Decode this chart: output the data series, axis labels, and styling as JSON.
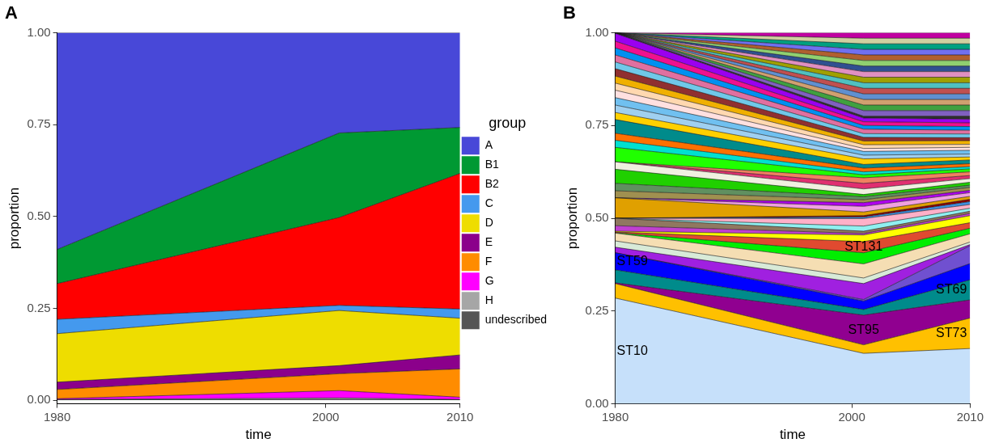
{
  "chart_data": [
    {
      "type": "area",
      "title": "A",
      "xlabel": "time",
      "ylabel": "proportion",
      "stacked": true,
      "legend": "right",
      "legend_title": "group",
      "x": [
        1980,
        2001,
        2010
      ],
      "xlim": [
        1980,
        2010
      ],
      "xticks": [
        1980,
        2000,
        2010
      ],
      "ylim": [
        -0.01,
        1
      ],
      "yticks": [
        {
          "value": 0,
          "label": "0.00"
        },
        {
          "value": 0.25,
          "label": "0.25"
        },
        {
          "value": 0.5,
          "label": "0.50"
        },
        {
          "value": 0.75,
          "label": "0.75"
        },
        {
          "value": 1,
          "label": "1.00"
        }
      ],
      "series": [
        {
          "name": "undescribed",
          "color": "#555555",
          "values": [
            0.001,
            0.002,
            0.001
          ]
        },
        {
          "name": "H",
          "color": "#a6a6a6",
          "values": [
            0.001,
            0.004,
            0.001
          ]
        },
        {
          "name": "G",
          "color": "#ff00ff",
          "values": [
            0.002,
            0.02,
            0.006
          ]
        },
        {
          "name": "F",
          "color": "#ff8c00",
          "values": [
            0.025,
            0.046,
            0.077
          ]
        },
        {
          "name": "E",
          "color": "#8b008b",
          "values": [
            0.02,
            0.022,
            0.038
          ]
        },
        {
          "name": "D",
          "color": "#eedd00",
          "values": [
            0.132,
            0.15,
            0.1
          ]
        },
        {
          "name": "C",
          "color": "#4499ee",
          "values": [
            0.039,
            0.014,
            0.025
          ]
        },
        {
          "name": "B2",
          "color": "#ff0000",
          "values": [
            0.097,
            0.239,
            0.369
          ]
        },
        {
          "name": "B1",
          "color": "#009933",
          "values": [
            0.093,
            0.23,
            0.125
          ]
        },
        {
          "name": "A",
          "color": "#4848d8",
          "values": [
            0.59,
            0.273,
            0.258
          ]
        }
      ]
    },
    {
      "type": "area",
      "title": "B",
      "xlabel": "time",
      "ylabel": "proportion",
      "stacked": true,
      "x": [
        1980,
        2001,
        2010
      ],
      "xlim": [
        1980,
        2010
      ],
      "xticks": [
        1980,
        2000,
        2010
      ],
      "ylim": [
        0,
        1
      ],
      "yticks": [
        {
          "value": 0,
          "label": "0.00"
        },
        {
          "value": 0.25,
          "label": "0.25"
        },
        {
          "value": 0.5,
          "label": "0.50"
        },
        {
          "value": 0.75,
          "label": "0.75"
        },
        {
          "value": 1,
          "label": "1.00"
        }
      ],
      "series": [
        {
          "name": "ST10",
          "color": "#c6e0fa",
          "values": [
            0.285,
            0.136,
            0.149
          ]
        },
        {
          "name": "ST73",
          "color": "#ffc000",
          "values": [
            0.039,
            0.023,
            0.082
          ]
        },
        {
          "name": "ST95",
          "color": "#900090",
          "values": [
            0.002,
            0.08,
            0.049
          ]
        },
        {
          "name": "ST69",
          "color": "#008b8b",
          "values": [
            0.035,
            0.015,
            0.054
          ]
        },
        {
          "name": "ST59",
          "color": "#0000ff",
          "values": [
            0.046,
            0.023,
            0.044
          ]
        },
        {
          "color": "#7050d0",
          "values": [
            0,
            0.004,
            0.048
          ]
        },
        {
          "color": "#a020e0",
          "values": [
            0.015,
            0.043,
            0.003
          ]
        },
        {
          "color": "#d8ead8",
          "values": [
            0.017,
            0.015,
            0.007
          ]
        },
        {
          "color": "#f5deb3",
          "values": [
            0.021,
            0.038,
            0.022
          ]
        },
        {
          "color": "#00ee00",
          "values": [
            0.001,
            0.03,
            0.015
          ]
        },
        {
          "name": "ST131",
          "color": "#e04a30",
          "values": [
            0.002,
            0.03,
            0.015
          ]
        },
        {
          "color": "#ffff00",
          "values": [
            0.002,
            0.018,
            0.019
          ]
        },
        {
          "color": "#c040d0",
          "values": [
            0.015,
            0.004,
            0.006
          ]
        },
        {
          "color": "#907860",
          "values": [
            0.02,
            0.006,
            0.006
          ]
        },
        {
          "color": "#90f0f0",
          "values": [
            0,
            0.014,
            0.008
          ]
        },
        {
          "color": "#ffb0c8",
          "values": [
            0,
            0.02,
            0.01
          ]
        },
        {
          "color": "#4090e0",
          "values": [
            0,
            0.004,
            0.008
          ]
        },
        {
          "color": "#900000",
          "values": [
            0,
            0.004,
            0.006
          ]
        },
        {
          "color": "#e0a000",
          "values": [
            0.055,
            0.01,
            0.008
          ]
        },
        {
          "color": "#f0a0e0",
          "values": [
            0,
            0.015,
            0.01
          ]
        },
        {
          "color": "#b000f0",
          "values": [
            0,
            0.01,
            0.006
          ]
        },
        {
          "color": "#a09050",
          "values": [
            0.019,
            0.008,
            0.008
          ]
        },
        {
          "color": "#609060",
          "values": [
            0.02,
            0.008,
            0.006
          ]
        },
        {
          "color": "#20d000",
          "values": [
            0.038,
            0.006,
            0.008
          ]
        },
        {
          "color": "#f0f0e0",
          "values": [
            0.02,
            0.015,
            0.01
          ]
        },
        {
          "color": "#e03070",
          "values": [
            0,
            0.015,
            0.008
          ]
        },
        {
          "color": "#f08060",
          "values": [
            0,
            0.015,
            0.01
          ]
        },
        {
          "color": "#20ff00",
          "values": [
            0.039,
            0.008,
            0.008
          ]
        },
        {
          "color": "#00e0d0",
          "values": [
            0.019,
            0.008,
            0.006
          ]
        },
        {
          "color": "#ff7000",
          "values": [
            0.019,
            0.01,
            0.008
          ]
        },
        {
          "color": "#008b8b",
          "values": [
            0.037,
            0.01,
            0.01
          ]
        },
        {
          "color": "#ffd000",
          "values": [
            0.019,
            0.015,
            0.008
          ]
        },
        {
          "color": "#a0d0f0",
          "values": [
            0.02,
            0.01,
            0.008
          ]
        },
        {
          "color": "#70c0f0",
          "values": [
            0.02,
            0.01,
            0.01
          ]
        },
        {
          "color": "#ffe0e0",
          "values": [
            0.02,
            0.008,
            0.008
          ]
        },
        {
          "color": "#ffd8b0",
          "values": [
            0.019,
            0.01,
            0.008
          ]
        },
        {
          "color": "#f0b000",
          "values": [
            0.019,
            0.01,
            0.01
          ]
        },
        {
          "color": "#903030",
          "values": [
            0.02,
            0.01,
            0.008
          ]
        },
        {
          "color": "#70c8e8",
          "values": [
            0.018,
            0.01,
            0.01
          ]
        },
        {
          "color": "#e070a0",
          "values": [
            0.019,
            0.012,
            0.01
          ]
        },
        {
          "color": "#0090f0",
          "values": [
            0.019,
            0.01,
            0.01
          ]
        },
        {
          "color": "#f0108f",
          "values": [
            0.018,
            0.01,
            0.01
          ]
        },
        {
          "color": "#9a00f0",
          "values": [
            0.021,
            0.01,
            0.01
          ]
        },
        {
          "color": "#303030",
          "values": [
            0.002,
            0.005,
            0.008
          ]
        },
        {
          "color": "#8060c0",
          "values": [
            0,
            0.015,
            0.015
          ]
        },
        {
          "color": "#40a040",
          "values": [
            0,
            0.015,
            0.015
          ]
        },
        {
          "color": "#d0a070",
          "values": [
            0,
            0.015,
            0.015
          ]
        },
        {
          "color": "#6090d0",
          "values": [
            0,
            0.015,
            0.015
          ]
        },
        {
          "color": "#c05050",
          "values": [
            0,
            0.015,
            0.015
          ]
        },
        {
          "color": "#50c0c0",
          "values": [
            0,
            0.015,
            0.015
          ]
        },
        {
          "color": "#a0a000",
          "values": [
            0,
            0.015,
            0.015
          ]
        },
        {
          "color": "#e090c0",
          "values": [
            0,
            0.015,
            0.015
          ]
        },
        {
          "color": "#305090",
          "values": [
            0,
            0.015,
            0.015
          ]
        },
        {
          "color": "#90d070",
          "values": [
            0,
            0.015,
            0.015
          ]
        },
        {
          "color": "#b06030",
          "values": [
            0,
            0.015,
            0.015
          ]
        },
        {
          "color": "#7070f0",
          "values": [
            0,
            0.015,
            0.015
          ]
        },
        {
          "color": "#00a080",
          "values": [
            0,
            0.015,
            0.015
          ]
        },
        {
          "color": "#d0d0a0",
          "values": [
            0,
            0.015,
            0.015
          ]
        },
        {
          "color": "#c000a0",
          "values": [
            0,
            0.015,
            0.015
          ]
        }
      ]
    }
  ]
}
